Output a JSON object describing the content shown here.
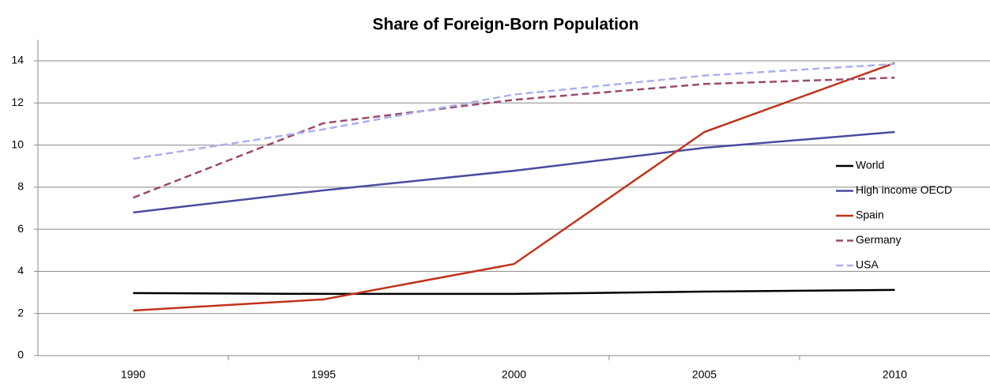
{
  "chart_data": {
    "type": "line",
    "title": "Share of Foreign-Born Population",
    "categories": [
      "1990",
      "1995",
      "2000",
      "2005",
      "2010"
    ],
    "series": [
      {
        "name": "World",
        "color": "#000000",
        "dashed": false,
        "values": [
          2.97,
          2.93,
          2.93,
          3.04,
          3.12
        ]
      },
      {
        "name": "High income OECD",
        "color": "#4b4ba0",
        "dashed": false,
        "values": [
          6.8,
          7.85,
          8.78,
          9.87,
          10.62
        ]
      },
      {
        "name": "Spain",
        "color": "#c0341a",
        "dashed": false,
        "values": [
          2.14,
          2.67,
          4.35,
          10.62,
          13.9
        ]
      },
      {
        "name": "Germany",
        "color": "#9b4a6e",
        "dashed": true,
        "values": [
          7.5,
          11.04,
          12.15,
          12.9,
          13.2
        ]
      },
      {
        "name": "USA",
        "color": "#aab0f0",
        "dashed": true,
        "values": [
          9.35,
          10.75,
          12.4,
          13.3,
          13.85
        ]
      }
    ],
    "ylim": [
      0,
      15
    ],
    "yticks": [
      0,
      2,
      4,
      6,
      8,
      10,
      12,
      14
    ],
    "grid": true,
    "legend": "right"
  }
}
